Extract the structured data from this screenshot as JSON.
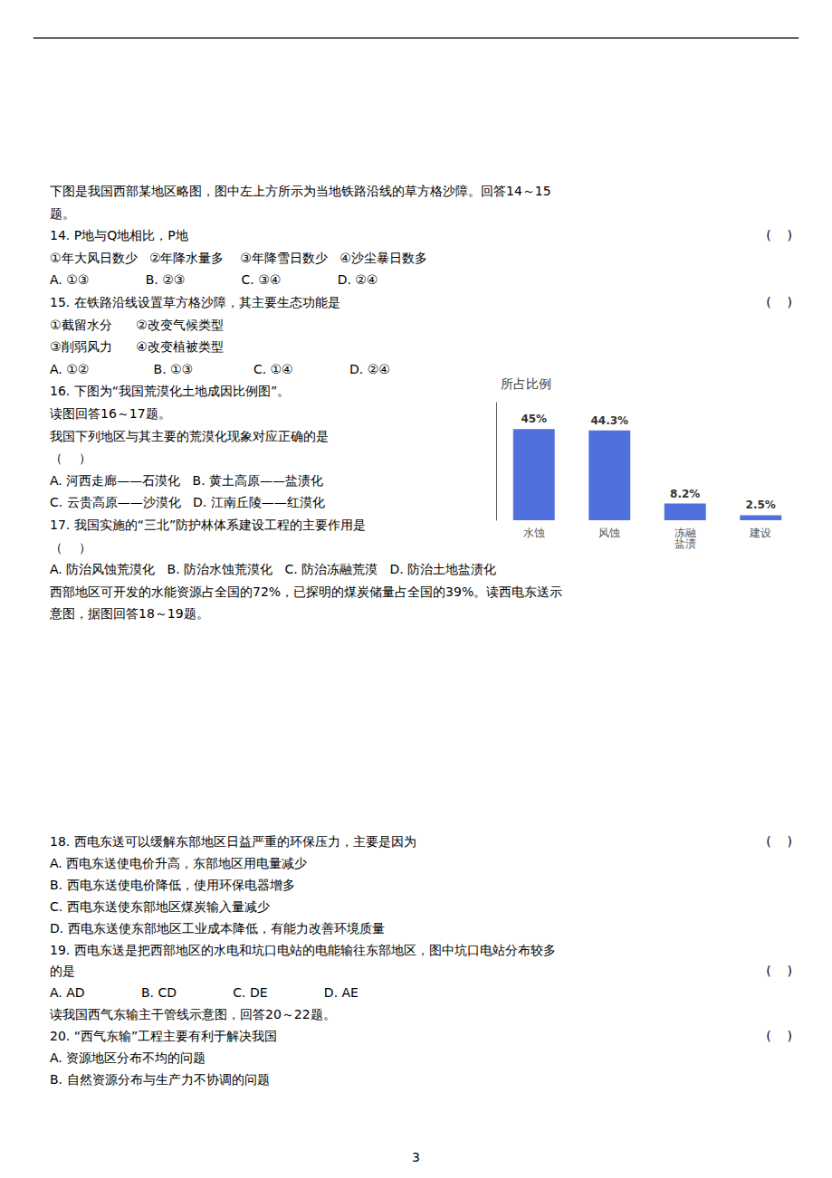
{
  "chart_data": {
    "type": "bar",
    "title": "所占比例",
    "categories": [
      "水蚀",
      "风蚀",
      "冻融\n盐渍",
      "建设"
    ],
    "values": [
      45.0,
      44.3,
      8.2,
      2.5
    ],
    "value_labels": [
      "45%",
      "44.3%",
      "8.2%",
      "2.5%"
    ],
    "data_labels": true,
    "ylim": [
      0,
      58
    ],
    "yticks": [],
    "tick_labels": "x",
    "grid": false,
    "annotations": [
      [
        [
          "下图是我国西部某地区略图，图中左上方所示为当地铁路沿线的草方格沙障。回答14～15"
        ],
        [
          "题。"
        ],
        [
          "14. P地与Q地相比，P地",
          "(    )"
        ],
        [
          "①年大风日数少   ②年降水量多    ③年降雪日数少   ④沙尘暴日数多"
        ],
        [
          "A. ①③              B. ②③              C. ③④              D. ②④"
        ],
        [
          "15. 在铁路沿线设置草方格沙障，其主要生态功能是",
          "(    )"
        ],
        [
          "①截留水分      ②改变气候类型"
        ],
        [
          "③削弱风力      ④改变植被类型"
        ],
        [
          "A. ①②                B. ①③               C. ①④              D. ②④"
        ],
        [
          "16. 下图为“我国荒漠化土地成因比例图”。"
        ],
        [
          "读图回答16～17题。"
        ],
        [
          "我国下列地区与其主要的荒漠化现象对应正确的是"
        ],
        [
          "（    ）"
        ],
        [
          "A. 河西走廊——石漠化   B. 黄土高原——盐渍化"
        ],
        [
          "C. 云贵高原——沙漠化   D. 江南丘陵——红漠化"
        ],
        [
          "17. 我国实施的“三北”防护林体系建设工程的主要作用是"
        ],
        [
          "（    ）"
        ],
        [
          "A. 防治风蚀荒漠化   B. 防治水蚀荒漠化   C. 防治冻融荒漠   D. 防治土地盐渍化"
        ],
        [
          "西部地区可开发的水能资源占全国的72%，已探明的煤炭储量占全国的39%。读西电东送示"
        ],
        [
          "意图，据图回答18～19题。"
        ]
      ],
      [
        [
          "18. 西电东送可以缓解东部地区日益严重的环保压力，主要是因为",
          "(    )"
        ],
        [
          "A. 西电东送使电价升高，东部地区用电量减少"
        ],
        [
          "B. 西电东送使电价降低，使用环保电器增多"
        ],
        [
          "C. 西电东送使东部地区煤炭输入量减少"
        ],
        [
          "D. 西电东送使东部地区工业成本降低，有能力改善环境质量"
        ],
        [
          "19. 西电东送是把西部地区的水电和坑口电站的电能输往东部地区，图中坑口电站分布较多"
        ],
        [
          "的是",
          "(    )"
        ],
        [
          "A. AD              B. CD              C. DE              D. AE"
        ],
        [
          "读我国西气东输主干管线示意图，回答20～22题。"
        ],
        [
          "20. “西气东输”工程主要有利于解决我国",
          "(    )"
        ],
        [
          "A. 资源地区分布不均的问题"
        ],
        [
          "B. 自然资源分布与生产力不协调的问题"
        ]
      ],
      [
        [
          "3"
        ]
      ]
    ]
  }
}
